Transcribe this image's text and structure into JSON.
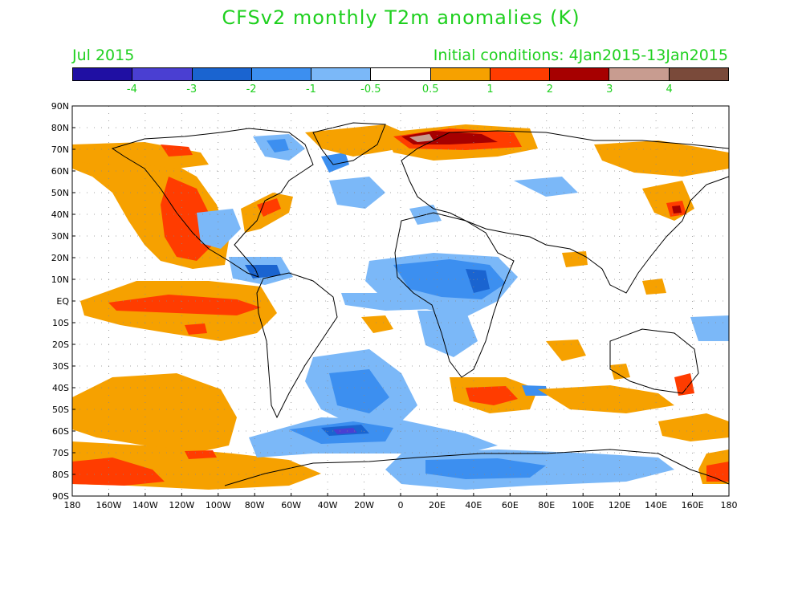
{
  "header": {
    "title": "CFSv2 monthly T2m anomalies (K)",
    "month": "Jul 2015",
    "init": "Initial conditions: 4Jan2015-13Jan2015"
  },
  "colorbar": {
    "colors": [
      "#1f0fa3",
      "#4a3fd2",
      "#1a64d0",
      "#3c8ff0",
      "#7bb8f8",
      "#ffffff",
      "#f6a100",
      "#ff3c00",
      "#a60000",
      "#c89c90",
      "#7a4a3a"
    ],
    "labels": [
      "-4",
      "-3",
      "-2",
      "-1",
      "-0.5",
      "0.5",
      "1",
      "2",
      "3",
      "4"
    ]
  },
  "map": {
    "lat_labels": [
      "90N",
      "80N",
      "70N",
      "60N",
      "50N",
      "40N",
      "30N",
      "20N",
      "10N",
      "EQ",
      "10S",
      "20S",
      "30S",
      "40S",
      "50S",
      "60S",
      "70S",
      "80S",
      "90S"
    ],
    "lon_labels": [
      "180",
      "160W",
      "140W",
      "120W",
      "100W",
      "80W",
      "60W",
      "40W",
      "20W",
      "0",
      "20E",
      "40E",
      "60E",
      "80E",
      "100E",
      "120E",
      "140E",
      "160E",
      "180"
    ],
    "lon_values": [
      -180,
      -160,
      -140,
      -120,
      -100,
      -80,
      -60,
      -40,
      -20,
      0,
      20,
      40,
      60,
      80,
      100,
      120,
      140,
      160,
      180
    ],
    "lat_values": [
      90,
      80,
      70,
      60,
      50,
      40,
      30,
      20,
      10,
      0,
      -10,
      -20,
      -30,
      -40,
      -50,
      -60,
      -70,
      -80,
      -90
    ]
  }
}
